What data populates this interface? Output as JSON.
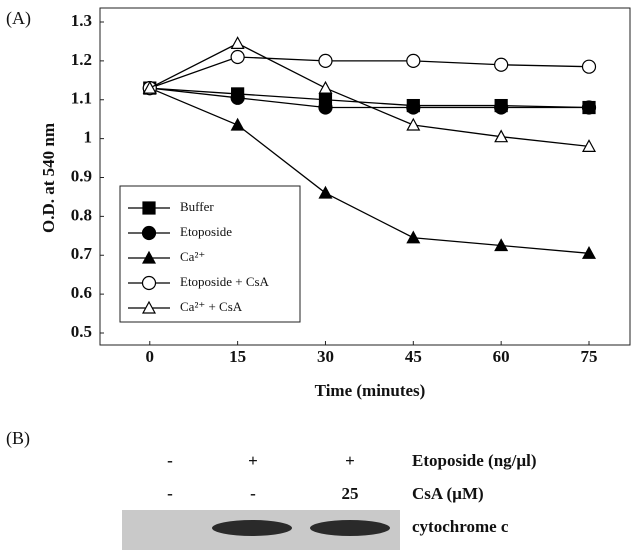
{
  "panel_a_label": "(A)",
  "chart_data": {
    "type": "line",
    "x_label": "Time (minutes)",
    "y_label": "O.D. at 540 nm",
    "x": [
      0,
      15,
      30,
      45,
      60,
      75
    ],
    "xlim": [
      -8.5,
      82
    ],
    "xticks": [
      0,
      15,
      30,
      45,
      60,
      75
    ],
    "ylim": [
      0.5,
      1.3
    ],
    "yticks": [
      0.5,
      0.6,
      0.7,
      0.8,
      0.9,
      1,
      1.1,
      1.2,
      1.3
    ],
    "grid": false,
    "legend": "lower left",
    "series": [
      {
        "name": "Buffer",
        "color": "#000000",
        "marker": "square",
        "filled": true,
        "values": [
          1.13,
          1.115,
          1.1,
          1.085,
          1.085,
          1.08
        ]
      },
      {
        "name": "Etoposide",
        "color": "#000000",
        "marker": "circle",
        "filled": true,
        "values": [
          1.13,
          1.105,
          1.08,
          1.08,
          1.08,
          1.08
        ]
      },
      {
        "name": "Ca²⁺",
        "color": "#000000",
        "marker": "triangle",
        "filled": true,
        "values": [
          1.13,
          1.035,
          0.86,
          0.745,
          0.725,
          0.705
        ]
      },
      {
        "name": "Etoposide + CsA",
        "color": "#000000",
        "marker": "circle",
        "filled": false,
        "values": [
          1.13,
          1.21,
          1.2,
          1.2,
          1.19,
          1.185
        ]
      },
      {
        "name": "Ca²⁺ + CsA",
        "color": "#000000",
        "marker": "triangle",
        "filled": false,
        "values": [
          1.13,
          1.245,
          1.13,
          1.035,
          1.005,
          0.98
        ]
      }
    ]
  },
  "panel_b": {
    "label": "(B)",
    "rows": [
      {
        "label": "Etoposide (ng/µl)",
        "lanes": [
          "-",
          "+",
          "+"
        ]
      },
      {
        "label": "CsA (µM)",
        "lanes": [
          "-",
          "-",
          "25"
        ]
      }
    ],
    "band_label": "cytochrome c"
  }
}
